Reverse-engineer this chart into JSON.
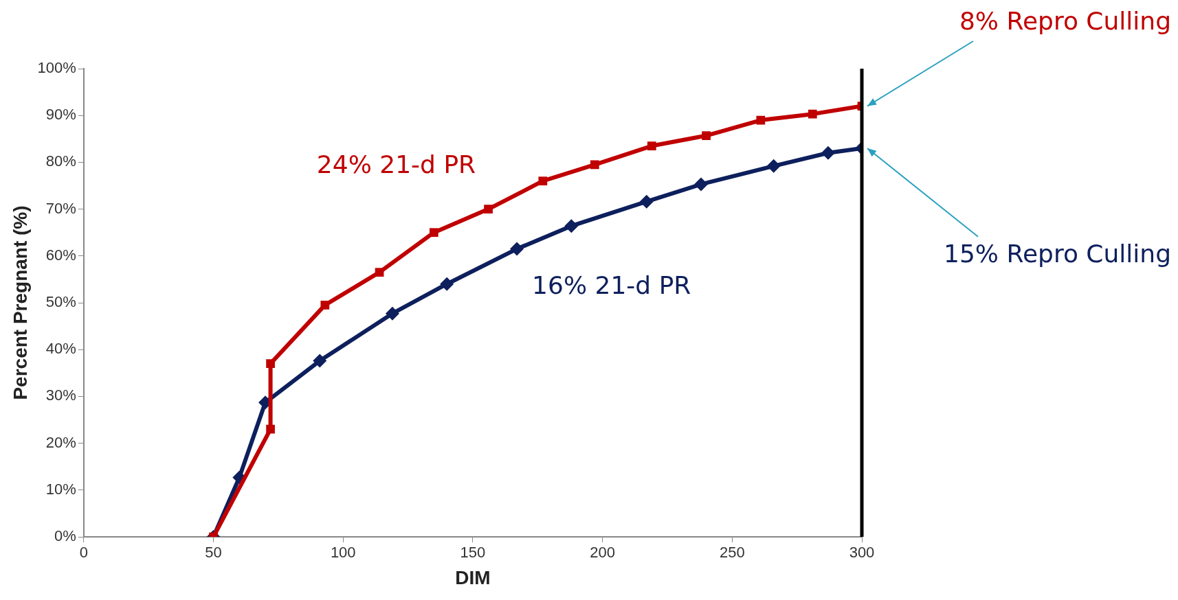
{
  "chart_data": {
    "type": "line",
    "xlabel": "DIM",
    "ylabel": "Percent Pregnant (%)",
    "xlim": [
      0,
      300
    ],
    "xticks": [
      0,
      50,
      100,
      150,
      200,
      250,
      300
    ],
    "ylim": [
      0,
      100
    ],
    "yticks": [
      {
        "value": 0,
        "label": "0%"
      },
      {
        "value": 10,
        "label": "10%"
      },
      {
        "value": 20,
        "label": "20%"
      },
      {
        "value": 30,
        "label": "30%"
      },
      {
        "value": 40,
        "label": "40%"
      },
      {
        "value": 50,
        "label": "50%"
      },
      {
        "value": 60,
        "label": "60%"
      },
      {
        "value": 70,
        "label": "70%"
      },
      {
        "value": 80,
        "label": "80%"
      },
      {
        "value": 90,
        "label": "90%"
      },
      {
        "value": 100,
        "label": "100%"
      }
    ],
    "grid": false,
    "legend": false,
    "line_style": "solid",
    "series": [
      {
        "name": "24% 21-d PR",
        "color": "#c00000",
        "marker": "square",
        "x": [
          50,
          72,
          72,
          93,
          114,
          135,
          156,
          177,
          197,
          219,
          240,
          261,
          281,
          300
        ],
        "values": [
          0,
          23,
          37,
          49.5,
          56.5,
          65,
          70,
          76,
          79.5,
          83.5,
          85.7,
          89,
          90.3,
          92
        ]
      },
      {
        "name": "16% 21-d PR",
        "color": "#0d1f5c",
        "marker": "diamond",
        "x": [
          50,
          60,
          70,
          91,
          119,
          140,
          167,
          188,
          217,
          238,
          266,
          287,
          300
        ],
        "values": [
          0,
          12.7,
          28.7,
          37.6,
          47.7,
          54,
          61.5,
          66.4,
          71.6,
          75.3,
          79.2,
          82,
          83
        ]
      }
    ],
    "ref_lines": [
      {
        "axis": "x",
        "value": 300,
        "color": "#000000"
      }
    ],
    "annotations": [
      {
        "text": "8% Repro Culling",
        "x": 300,
        "y": 92
      },
      {
        "text": "15% Repro Culling",
        "x": 300,
        "y": 83
      }
    ]
  }
}
